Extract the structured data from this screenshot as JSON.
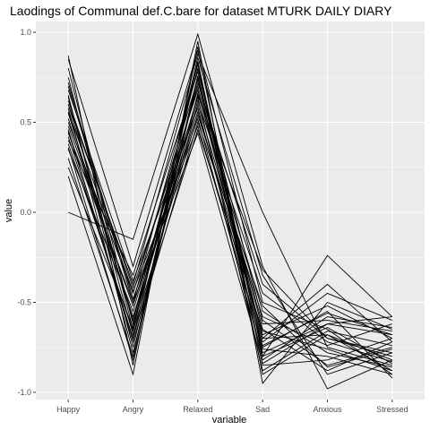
{
  "chart_data": {
    "type": "line",
    "title": "Laodings of Communal def.C.bare for dataset MTURK DAILY DIARY",
    "xlabel": "variable",
    "ylabel": "value",
    "categories": [
      "Happy",
      "Angry",
      "Relaxed",
      "Sad",
      "Anxious",
      "Stressed"
    ],
    "ylim": [
      -1.04,
      1.06
    ],
    "yticks": [
      -1.0,
      -0.5,
      0.0,
      0.5,
      1.0
    ],
    "ytick_labels": [
      "-1.0",
      "-0.5",
      "0.0",
      "0.5",
      "1.0"
    ],
    "grid": true,
    "legend": "none",
    "colors": {
      "panel": "#ebebeb",
      "grid_major": "#ffffff",
      "line": "#000000"
    },
    "series": [
      {
        "values": [
          0.0,
          -0.15,
          0.99,
          -0.3,
          -0.98,
          -0.82
        ]
      },
      {
        "values": [
          0.2,
          -0.9,
          0.95,
          -0.95,
          -0.5,
          -0.65
        ]
      },
      {
        "values": [
          0.87,
          -0.85,
          0.92,
          -0.5,
          -0.65,
          -0.9
        ]
      },
      {
        "values": [
          0.85,
          -0.3,
          0.9,
          -0.8,
          -0.24,
          -0.58
        ]
      },
      {
        "values": [
          0.6,
          -0.4,
          0.88,
          0.0,
          -0.75,
          -0.85
        ]
      },
      {
        "values": [
          0.45,
          -0.7,
          0.86,
          -0.35,
          -0.9,
          -0.78
        ]
      },
      {
        "values": [
          0.3,
          -0.8,
          0.84,
          -0.85,
          -0.82,
          -0.7
        ]
      },
      {
        "values": [
          0.7,
          -0.5,
          0.82,
          -0.75,
          -0.55,
          -0.92
        ]
      },
      {
        "values": [
          0.55,
          -0.6,
          0.8,
          -0.78,
          -0.62,
          -0.68
        ]
      },
      {
        "values": [
          0.4,
          -0.35,
          0.78,
          -0.6,
          -0.85,
          -0.75
        ]
      },
      {
        "values": [
          0.65,
          -0.75,
          0.76,
          -0.7,
          -0.68,
          -0.88
        ]
      },
      {
        "values": [
          0.5,
          -0.45,
          0.74,
          -0.82,
          -0.58,
          -0.64
        ]
      },
      {
        "values": [
          0.75,
          -0.65,
          0.72,
          -0.4,
          -0.7,
          -0.8
        ]
      },
      {
        "values": [
          0.35,
          -0.55,
          0.7,
          -0.65,
          -0.88,
          -0.72
        ]
      },
      {
        "values": [
          0.62,
          -0.42,
          0.68,
          -0.72,
          -0.45,
          -0.6
        ]
      },
      {
        "values": [
          0.58,
          -0.78,
          0.66,
          -0.55,
          -0.78,
          -0.86
        ]
      },
      {
        "values": [
          0.48,
          -0.52,
          0.64,
          -0.88,
          -0.66,
          -0.74
        ]
      },
      {
        "values": [
          0.8,
          -0.62,
          0.62,
          -0.45,
          -0.72,
          -0.83
        ]
      },
      {
        "values": [
          0.42,
          -0.7,
          0.6,
          -0.62,
          -0.6,
          -0.66
        ]
      },
      {
        "values": [
          0.68,
          -0.38,
          0.58,
          -0.76,
          -0.8,
          -0.9
        ]
      },
      {
        "values": [
          0.52,
          -0.58,
          0.56,
          -0.68,
          -0.52,
          -0.7
        ]
      },
      {
        "values": [
          0.38,
          -0.66,
          0.54,
          -0.58,
          -0.74,
          -0.62
        ]
      },
      {
        "values": [
          0.72,
          -0.48,
          0.52,
          -0.8,
          -0.64,
          -0.84
        ]
      },
      {
        "values": [
          0.46,
          -0.72,
          0.5,
          -0.52,
          -0.86,
          -0.76
        ]
      },
      {
        "values": [
          0.56,
          -0.44,
          0.48,
          -0.74,
          -0.56,
          -0.68
        ]
      },
      {
        "values": [
          0.64,
          -0.68,
          0.46,
          -0.66,
          -0.76,
          -0.88
        ]
      },
      {
        "values": [
          0.44,
          -0.5,
          0.44,
          -0.84,
          -0.62,
          -0.58
        ]
      },
      {
        "values": [
          0.6,
          -0.6,
          0.65,
          -0.32,
          -0.7,
          -0.78
        ]
      },
      {
        "values": [
          0.36,
          -0.82,
          0.75,
          -0.7,
          -0.4,
          -0.72
        ]
      },
      {
        "values": [
          0.25,
          -0.64,
          0.83,
          -0.9,
          -0.68,
          -0.82
        ]
      }
    ]
  }
}
